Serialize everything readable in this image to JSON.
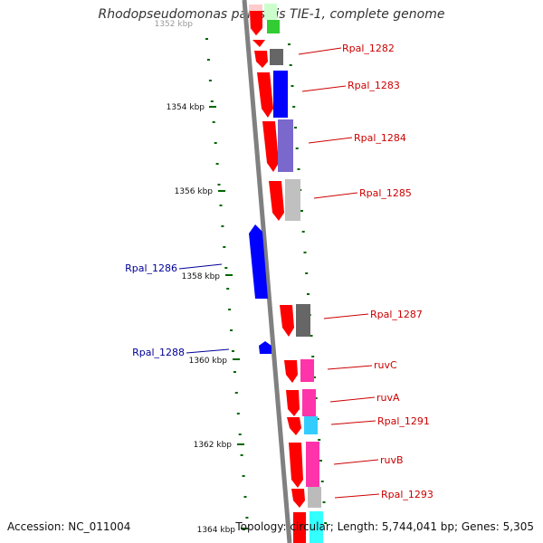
{
  "title": "Rhodopseudomonas palustris TIE-1, complete genome",
  "footer": {
    "accession": "Accession: NC_011004",
    "summary": "Topology: circular; Length: 5,744,041 bp; Genes: 5,305"
  },
  "ruler": {
    "labels": [
      "1352 kbp",
      "1354 kbp",
      "1356 kbp",
      "1358 kbp",
      "1360 kbp",
      "1362 kbp",
      "1364 kbp"
    ]
  },
  "colors": {
    "gene_forward": "#ff0000",
    "gene_reverse": "#0000ff",
    "label_forward": "#cc0000",
    "label_reverse": "#000099",
    "backbone": "#808080",
    "ruler_tick": "#006600"
  },
  "features": [
    {
      "label": "Rpal_1282",
      "strand": "forward"
    },
    {
      "label": "Rpal_1283",
      "strand": "forward"
    },
    {
      "label": "Rpal_1284",
      "strand": "forward"
    },
    {
      "label": "Rpal_1285",
      "strand": "forward"
    },
    {
      "label": "Rpal_1286",
      "strand": "reverse"
    },
    {
      "label": "Rpal_1287",
      "strand": "forward"
    },
    {
      "label": "Rpal_1288",
      "strand": "reverse"
    },
    {
      "label": "ruvC",
      "strand": "forward"
    },
    {
      "label": "ruvA",
      "strand": "forward"
    },
    {
      "label": "Rpal_1291",
      "strand": "forward"
    },
    {
      "label": "ruvB",
      "strand": "forward"
    },
    {
      "label": "Rpal_1293",
      "strand": "forward"
    }
  ]
}
